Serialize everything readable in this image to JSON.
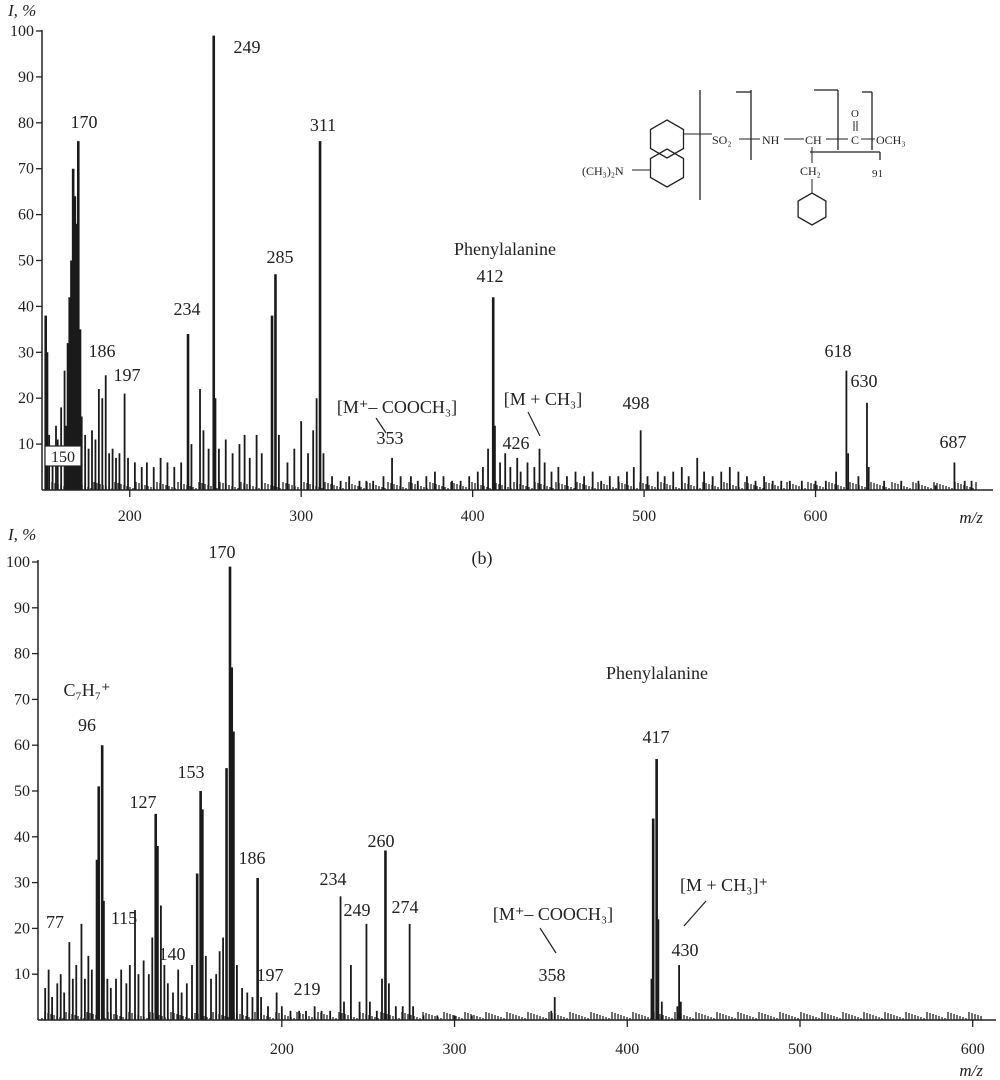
{
  "chart_data": [
    {
      "type": "bar",
      "ylabel": "I, %",
      "xlabel": "m/z",
      "xlim": [
        150,
        700
      ],
      "ylim": [
        0,
        100
      ],
      "xticks": [
        200,
        300,
        400,
        500,
        600
      ],
      "yticks": [
        10,
        20,
        30,
        40,
        50,
        60,
        70,
        80,
        90,
        100
      ],
      "x_start_label": "150",
      "peaks": [
        {
          "x": 151,
          "y": 38
        },
        {
          "x": 152,
          "y": 30
        },
        {
          "x": 153,
          "y": 12
        },
        {
          "x": 155,
          "y": 9
        },
        {
          "x": 157,
          "y": 14
        },
        {
          "x": 158,
          "y": 11
        },
        {
          "x": 160,
          "y": 18
        },
        {
          "x": 162,
          "y": 26
        },
        {
          "x": 163,
          "y": 14
        },
        {
          "x": 164,
          "y": 32
        },
        {
          "x": 165,
          "y": 42
        },
        {
          "x": 166,
          "y": 50
        },
        {
          "x": 167,
          "y": 70
        },
        {
          "x": 168,
          "y": 64
        },
        {
          "x": 169,
          "y": 58
        },
        {
          "x": 170,
          "y": 76
        },
        {
          "x": 171,
          "y": 35
        },
        {
          "x": 172,
          "y": 16
        },
        {
          "x": 174,
          "y": 12
        },
        {
          "x": 176,
          "y": 9
        },
        {
          "x": 178,
          "y": 13
        },
        {
          "x": 180,
          "y": 11
        },
        {
          "x": 182,
          "y": 22
        },
        {
          "x": 184,
          "y": 20
        },
        {
          "x": 186,
          "y": 25
        },
        {
          "x": 188,
          "y": 8
        },
        {
          "x": 190,
          "y": 9
        },
        {
          "x": 192,
          "y": 7
        },
        {
          "x": 194,
          "y": 8
        },
        {
          "x": 197,
          "y": 21
        },
        {
          "x": 199,
          "y": 7
        },
        {
          "x": 203,
          "y": 6
        },
        {
          "x": 207,
          "y": 5
        },
        {
          "x": 210,
          "y": 6
        },
        {
          "x": 214,
          "y": 5
        },
        {
          "x": 218,
          "y": 7
        },
        {
          "x": 222,
          "y": 6
        },
        {
          "x": 226,
          "y": 5
        },
        {
          "x": 230,
          "y": 6
        },
        {
          "x": 234,
          "y": 34
        },
        {
          "x": 236,
          "y": 10
        },
        {
          "x": 241,
          "y": 22
        },
        {
          "x": 243,
          "y": 13
        },
        {
          "x": 246,
          "y": 9
        },
        {
          "x": 249,
          "y": 99
        },
        {
          "x": 250,
          "y": 20
        },
        {
          "x": 252,
          "y": 9
        },
        {
          "x": 256,
          "y": 11
        },
        {
          "x": 260,
          "y": 8
        },
        {
          "x": 264,
          "y": 10
        },
        {
          "x": 267,
          "y": 12
        },
        {
          "x": 270,
          "y": 7
        },
        {
          "x": 274,
          "y": 12
        },
        {
          "x": 277,
          "y": 8
        },
        {
          "x": 283,
          "y": 38
        },
        {
          "x": 285,
          "y": 47
        },
        {
          "x": 287,
          "y": 12
        },
        {
          "x": 292,
          "y": 6
        },
        {
          "x": 296,
          "y": 9
        },
        {
          "x": 300,
          "y": 15
        },
        {
          "x": 304,
          "y": 8
        },
        {
          "x": 307,
          "y": 13
        },
        {
          "x": 309,
          "y": 20
        },
        {
          "x": 311,
          "y": 76
        },
        {
          "x": 313,
          "y": 8
        },
        {
          "x": 318,
          "y": 3
        },
        {
          "x": 323,
          "y": 2
        },
        {
          "x": 328,
          "y": 3
        },
        {
          "x": 334,
          "y": 2
        },
        {
          "x": 338,
          "y": 2
        },
        {
          "x": 342,
          "y": 2
        },
        {
          "x": 348,
          "y": 3
        },
        {
          "x": 353,
          "y": 7
        },
        {
          "x": 358,
          "y": 3
        },
        {
          "x": 364,
          "y": 3
        },
        {
          "x": 368,
          "y": 2
        },
        {
          "x": 373,
          "y": 3
        },
        {
          "x": 378,
          "y": 4
        },
        {
          "x": 383,
          "y": 3
        },
        {
          "x": 388,
          "y": 2
        },
        {
          "x": 393,
          "y": 2
        },
        {
          "x": 398,
          "y": 3
        },
        {
          "x": 403,
          "y": 4
        },
        {
          "x": 406,
          "y": 5
        },
        {
          "x": 409,
          "y": 9
        },
        {
          "x": 412,
          "y": 42
        },
        {
          "x": 413,
          "y": 14
        },
        {
          "x": 416,
          "y": 6
        },
        {
          "x": 419,
          "y": 8
        },
        {
          "x": 422,
          "y": 5
        },
        {
          "x": 426,
          "y": 7
        },
        {
          "x": 428,
          "y": 4
        },
        {
          "x": 432,
          "y": 6
        },
        {
          "x": 436,
          "y": 5
        },
        {
          "x": 439,
          "y": 9
        },
        {
          "x": 442,
          "y": 6
        },
        {
          "x": 446,
          "y": 4
        },
        {
          "x": 450,
          "y": 5
        },
        {
          "x": 455,
          "y": 3
        },
        {
          "x": 460,
          "y": 4
        },
        {
          "x": 465,
          "y": 3
        },
        {
          "x": 470,
          "y": 4
        },
        {
          "x": 475,
          "y": 2
        },
        {
          "x": 480,
          "y": 3
        },
        {
          "x": 485,
          "y": 3
        },
        {
          "x": 490,
          "y": 4
        },
        {
          "x": 494,
          "y": 5
        },
        {
          "x": 498,
          "y": 13
        },
        {
          "x": 502,
          "y": 3
        },
        {
          "x": 508,
          "y": 4
        },
        {
          "x": 512,
          "y": 3
        },
        {
          "x": 517,
          "y": 4
        },
        {
          "x": 522,
          "y": 5
        },
        {
          "x": 526,
          "y": 3
        },
        {
          "x": 531,
          "y": 7
        },
        {
          "x": 535,
          "y": 4
        },
        {
          "x": 540,
          "y": 3
        },
        {
          "x": 545,
          "y": 4
        },
        {
          "x": 550,
          "y": 5
        },
        {
          "x": 555,
          "y": 4
        },
        {
          "x": 560,
          "y": 3
        },
        {
          "x": 565,
          "y": 2
        },
        {
          "x": 570,
          "y": 3
        },
        {
          "x": 575,
          "y": 2
        },
        {
          "x": 580,
          "y": 2
        },
        {
          "x": 585,
          "y": 2
        },
        {
          "x": 592,
          "y": 2
        },
        {
          "x": 600,
          "y": 2
        },
        {
          "x": 606,
          "y": 2
        },
        {
          "x": 612,
          "y": 4
        },
        {
          "x": 618,
          "y": 26
        },
        {
          "x": 619,
          "y": 8
        },
        {
          "x": 625,
          "y": 3
        },
        {
          "x": 630,
          "y": 19
        },
        {
          "x": 631,
          "y": 5
        },
        {
          "x": 640,
          "y": 2
        },
        {
          "x": 650,
          "y": 2
        },
        {
          "x": 660,
          "y": 2
        },
        {
          "x": 670,
          "y": 1
        },
        {
          "x": 681,
          "y": 6
        },
        {
          "x": 687,
          "y": 2
        },
        {
          "x": 691,
          "y": 2
        }
      ],
      "annotations": [
        {
          "text": "170",
          "x": 170
        },
        {
          "text": "186",
          "x": 186
        },
        {
          "text": "197",
          "x": 197
        },
        {
          "text": "234",
          "x": 234
        },
        {
          "text": "249",
          "x": 249
        },
        {
          "text": "285",
          "x": 285
        },
        {
          "text": "311",
          "x": 311
        },
        {
          "text": "[M⁺– COOCH₃]",
          "x": 353
        },
        {
          "text": "353",
          "x": 353
        },
        {
          "text": "Phenylalanine",
          "x": 412
        },
        {
          "text": "412",
          "x": 412
        },
        {
          "text": "[M + CH₃]",
          "x": 440
        },
        {
          "text": "426",
          "x": 426
        },
        {
          "text": "498",
          "x": 498
        },
        {
          "text": "618",
          "x": 618
        },
        {
          "text": "630",
          "x": 630
        },
        {
          "text": "687",
          "x": 687
        }
      ],
      "structure_labels": {
        "amine": "(CH₃)₂N",
        "so2": "SO₂",
        "nh": "NH",
        "ch": "CH",
        "c": "C",
        "o": "O",
        "och3": "OCH₃",
        "ch2": "CH₂",
        "frag": "91"
      }
    },
    {
      "type": "bar",
      "ylabel": "I, %",
      "xlabel": "m/z",
      "panel_label": "(b)",
      "xlim": [
        60,
        610
      ],
      "ylim": [
        0,
        100
      ],
      "xticks": [
        200,
        300,
        400,
        500,
        600
      ],
      "yticks": [
        10,
        20,
        30,
        40,
        50,
        60,
        70,
        80,
        90,
        100
      ],
      "peaks": [
        {
          "x": 63,
          "y": 7
        },
        {
          "x": 65,
          "y": 11
        },
        {
          "x": 67,
          "y": 5
        },
        {
          "x": 70,
          "y": 8
        },
        {
          "x": 72,
          "y": 10
        },
        {
          "x": 74,
          "y": 6
        },
        {
          "x": 77,
          "y": 17
        },
        {
          "x": 79,
          "y": 9
        },
        {
          "x": 81,
          "y": 12
        },
        {
          "x": 84,
          "y": 21
        },
        {
          "x": 86,
          "y": 9
        },
        {
          "x": 88,
          "y": 14
        },
        {
          "x": 90,
          "y": 11
        },
        {
          "x": 93,
          "y": 35
        },
        {
          "x": 94,
          "y": 51
        },
        {
          "x": 96,
          "y": 60
        },
        {
          "x": 97,
          "y": 26
        },
        {
          "x": 99,
          "y": 9
        },
        {
          "x": 101,
          "y": 7
        },
        {
          "x": 104,
          "y": 9
        },
        {
          "x": 107,
          "y": 11
        },
        {
          "x": 110,
          "y": 8
        },
        {
          "x": 112,
          "y": 12
        },
        {
          "x": 115,
          "y": 24
        },
        {
          "x": 117,
          "y": 10
        },
        {
          "x": 120,
          "y": 13
        },
        {
          "x": 123,
          "y": 10
        },
        {
          "x": 125,
          "y": 18
        },
        {
          "x": 127,
          "y": 45
        },
        {
          "x": 128,
          "y": 38
        },
        {
          "x": 130,
          "y": 25
        },
        {
          "x": 132,
          "y": 12
        },
        {
          "x": 134,
          "y": 8
        },
        {
          "x": 137,
          "y": 6
        },
        {
          "x": 140,
          "y": 11
        },
        {
          "x": 142,
          "y": 6
        },
        {
          "x": 145,
          "y": 8
        },
        {
          "x": 148,
          "y": 12
        },
        {
          "x": 151,
          "y": 32
        },
        {
          "x": 153,
          "y": 50
        },
        {
          "x": 154,
          "y": 46
        },
        {
          "x": 156,
          "y": 14
        },
        {
          "x": 159,
          "y": 9
        },
        {
          "x": 162,
          "y": 10
        },
        {
          "x": 164,
          "y": 15
        },
        {
          "x": 166,
          "y": 18
        },
        {
          "x": 168,
          "y": 55
        },
        {
          "x": 170,
          "y": 99
        },
        {
          "x": 171,
          "y": 77
        },
        {
          "x": 172,
          "y": 63
        },
        {
          "x": 174,
          "y": 12
        },
        {
          "x": 177,
          "y": 7
        },
        {
          "x": 180,
          "y": 6
        },
        {
          "x": 183,
          "y": 5
        },
        {
          "x": 186,
          "y": 31
        },
        {
          "x": 188,
          "y": 5
        },
        {
          "x": 192,
          "y": 3
        },
        {
          "x": 197,
          "y": 6
        },
        {
          "x": 200,
          "y": 3
        },
        {
          "x": 205,
          "y": 2
        },
        {
          "x": 210,
          "y": 2
        },
        {
          "x": 214,
          "y": 2
        },
        {
          "x": 219,
          "y": 3
        },
        {
          "x": 223,
          "y": 2
        },
        {
          "x": 228,
          "y": 2
        },
        {
          "x": 234,
          "y": 27
        },
        {
          "x": 236,
          "y": 4
        },
        {
          "x": 240,
          "y": 12
        },
        {
          "x": 245,
          "y": 4
        },
        {
          "x": 249,
          "y": 21
        },
        {
          "x": 251,
          "y": 4
        },
        {
          "x": 255,
          "y": 2
        },
        {
          "x": 258,
          "y": 9
        },
        {
          "x": 260,
          "y": 37
        },
        {
          "x": 262,
          "y": 8
        },
        {
          "x": 266,
          "y": 3
        },
        {
          "x": 270,
          "y": 3
        },
        {
          "x": 274,
          "y": 21
        },
        {
          "x": 276,
          "y": 3
        },
        {
          "x": 282,
          "y": 1
        },
        {
          "x": 290,
          "y": 1
        },
        {
          "x": 300,
          "y": 1
        },
        {
          "x": 310,
          "y": 1
        },
        {
          "x": 356,
          "y": 2
        },
        {
          "x": 358,
          "y": 5
        },
        {
          "x": 414,
          "y": 9
        },
        {
          "x": 415,
          "y": 44
        },
        {
          "x": 417,
          "y": 57
        },
        {
          "x": 418,
          "y": 22
        },
        {
          "x": 420,
          "y": 4
        },
        {
          "x": 429,
          "y": 3
        },
        {
          "x": 430,
          "y": 12
        },
        {
          "x": 431,
          "y": 4
        }
      ],
      "annotations": [
        {
          "text": "C₇H₇⁺",
          "x": 91
        },
        {
          "text": "96",
          "x": 96
        },
        {
          "text": "77",
          "x": 77
        },
        {
          "text": "115",
          "x": 115
        },
        {
          "text": "127",
          "x": 127
        },
        {
          "text": "140",
          "x": 140
        },
        {
          "text": "153",
          "x": 153
        },
        {
          "text": "170",
          "x": 170
        },
        {
          "text": "186",
          "x": 186
        },
        {
          "text": "197",
          "x": 197
        },
        {
          "text": "219",
          "x": 219
        },
        {
          "text": "234",
          "x": 234
        },
        {
          "text": "249",
          "x": 249
        },
        {
          "text": "260",
          "x": 260
        },
        {
          "text": "274",
          "x": 274
        },
        {
          "text": "[M⁺– COOCH₃]",
          "x": 358
        },
        {
          "text": "358",
          "x": 358
        },
        {
          "text": "Phenylalanine",
          "x": 420
        },
        {
          "text": "417",
          "x": 417
        },
        {
          "text": "[M + CH₃]⁺",
          "x": 440
        },
        {
          "text": "430",
          "x": 430
        }
      ]
    }
  ]
}
